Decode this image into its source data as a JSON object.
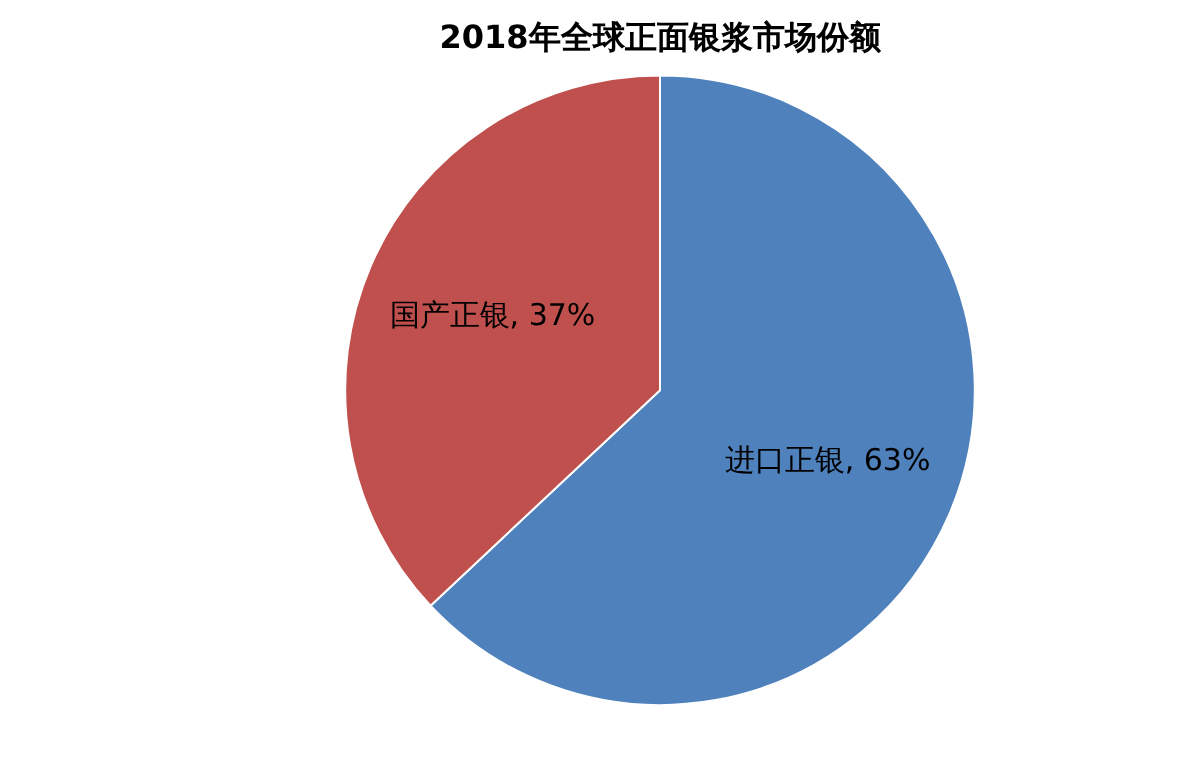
{
  "chart_data": {
    "type": "pie",
    "title": "2018年全球正面银浆市场份额",
    "categories": [
      "进口正银",
      "国产正银"
    ],
    "values": [
      63,
      37
    ],
    "colors": [
      "#4f81bd",
      "#c0504d"
    ],
    "value_labels": [
      ", 63%",
      ", 37%"
    ],
    "legend": false
  }
}
